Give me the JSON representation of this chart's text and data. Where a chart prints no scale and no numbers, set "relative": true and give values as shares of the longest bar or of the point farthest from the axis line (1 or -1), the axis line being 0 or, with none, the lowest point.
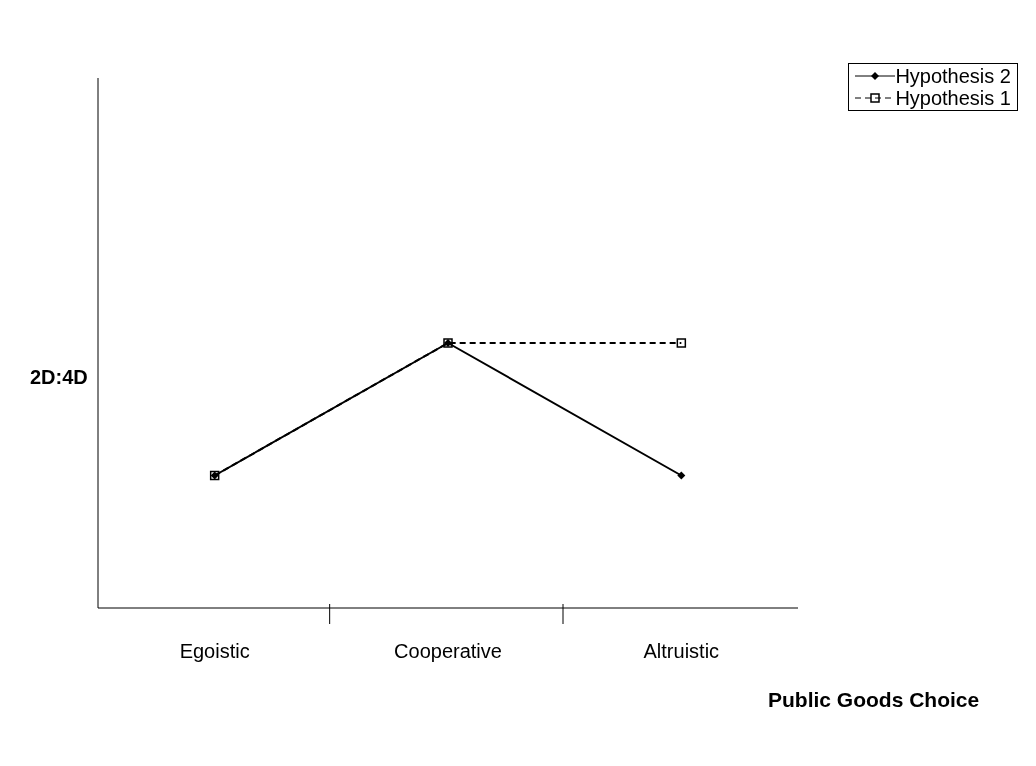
{
  "chart_data": {
    "type": "line",
    "relative": true,
    "ylabel": "2D:4D",
    "xlabel": "Public Goods Choice",
    "categories": [
      "Egoistic",
      "Cooperative",
      "Altruistic"
    ],
    "legend": "top right",
    "grid": false,
    "tick_labels": "x",
    "series": [
      {
        "name": "Hypothesis 2",
        "color": "#000000",
        "values": [
          0.5,
          1,
          0.5
        ],
        "marker": "diamond",
        "line_style": "solid"
      },
      {
        "name": "Hypothesis 1",
        "color": "#000000",
        "values": [
          0.5,
          1,
          1
        ],
        "marker": "square",
        "line_style": "dashed"
      }
    ]
  }
}
